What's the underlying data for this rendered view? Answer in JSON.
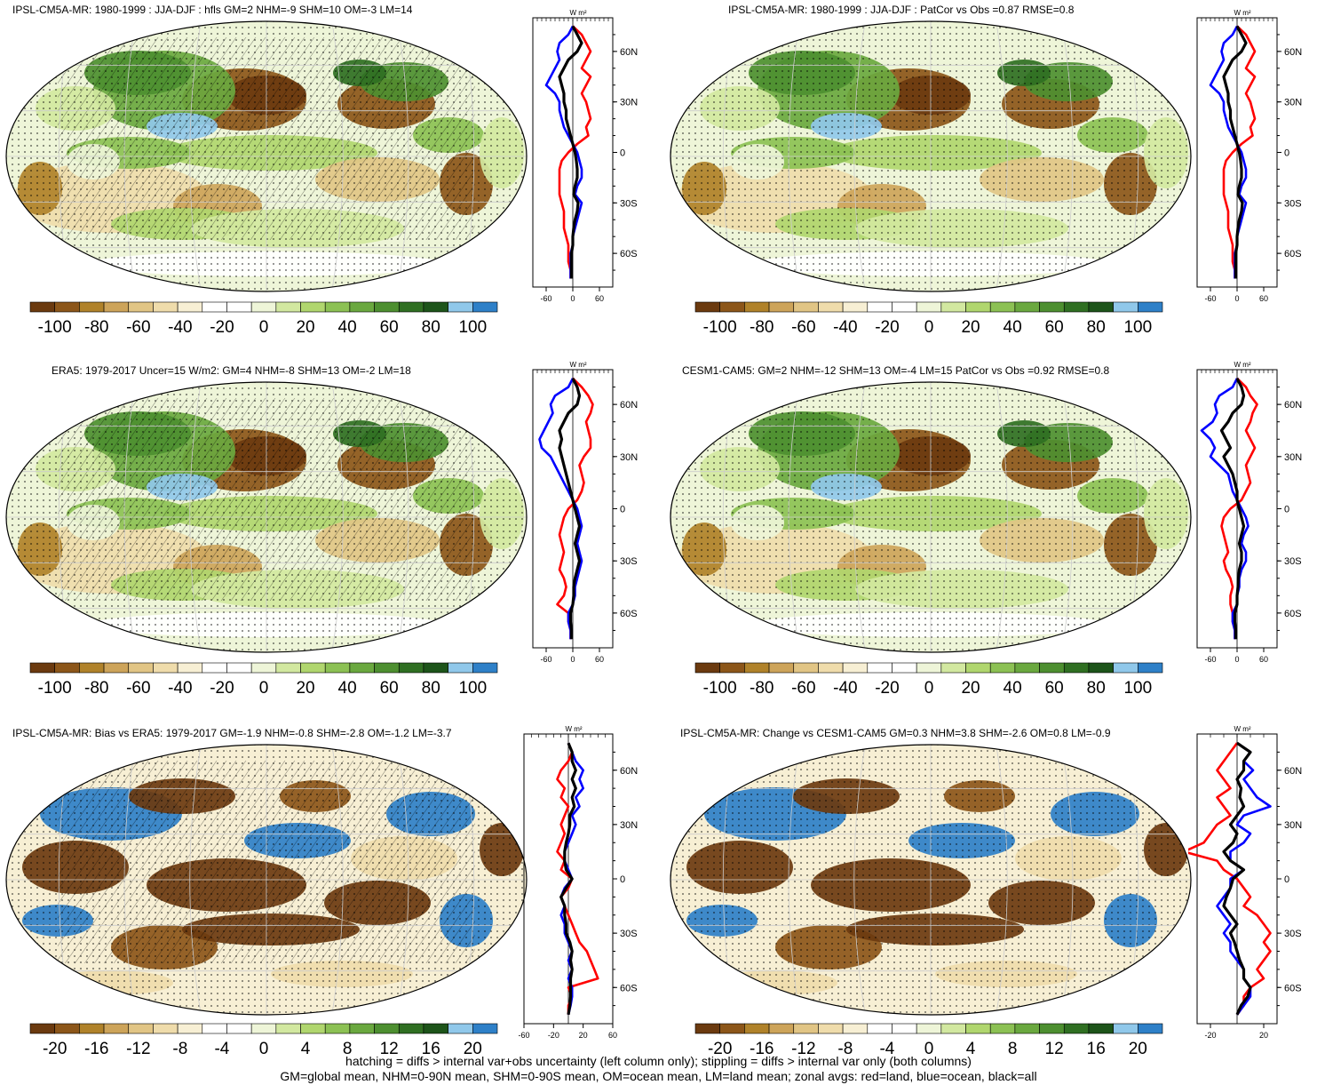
{
  "panels": [
    {
      "title": "IPSL-CM5A-MR: 1980-1999 : JJA-DJF : hfls GM=2 NHM=-9 SHM=10 OM=-3 LM=14",
      "pattern": "A",
      "hatched": true,
      "zonal_xticks": [
        "-60",
        "0",
        "60"
      ],
      "zonal_xrange": [
        -90,
        90
      ]
    },
    {
      "title": "IPSL-CM5A-MR: 1980-1999 : JJA-DJF : PatCor vs Obs =0.87 RMSE=0.8",
      "pattern": "A",
      "hatched": false,
      "zonal_xticks": [
        "-60",
        "0",
        "60"
      ],
      "zonal_xrange": [
        -90,
        90
      ]
    },
    {
      "title": "ERA5: 1979-2017 Uncer=15 W/m2: GM=4 NHM=-8 SHM=13 OM=-2 LM=18",
      "pattern": "A",
      "hatched": true,
      "zonal_xticks": [
        "-60",
        "0",
        "60"
      ],
      "zonal_xrange": [
        -90,
        90
      ]
    },
    {
      "title": "CESM1-CAM5: GM=2 NHM=-12 SHM=13 OM=-4 LM=15 PatCor vs Obs =0.92 RMSE=0.8",
      "pattern": "A",
      "hatched": false,
      "zonal_xticks": [
        "-60",
        "0",
        "60"
      ],
      "zonal_xrange": [
        -90,
        90
      ]
    },
    {
      "title": "IPSL-CM5A-MR: Bias vs ERA5: 1979-2017 GM=-1.9 NHM=-0.8 SHM=-2.8 OM=-1.2 LM=-3.7",
      "pattern": "B",
      "hatched": true,
      "zonal_xticks": [
        "-60",
        "-20",
        "20",
        "60"
      ],
      "zonal_xrange": [
        -60,
        60
      ]
    },
    {
      "title": "IPSL-CM5A-MR: Change vs CESM1-CAM5 GM=0.3 NHM=3.8 SHM=-2.6 OM=0.8 LM=-0.9",
      "pattern": "B",
      "hatched": false,
      "zonal_xticks": [
        "-20",
        "20"
      ],
      "zonal_xrange": [
        -30,
        30
      ]
    }
  ],
  "zonal_units": "W m²",
  "lat_labels": [
    "60N",
    "30N",
    "0",
    "30S",
    "60S"
  ],
  "colorbar_big": {
    "labels": [
      "-100",
      "-80",
      "-60",
      "-40",
      "-20",
      "0",
      "20",
      "40",
      "60",
      "80",
      "100"
    ]
  },
  "colorbar_small": {
    "labels": [
      "-20",
      "-16",
      "-12",
      "-8",
      "-4",
      "0",
      "4",
      "8",
      "12",
      "16",
      "20"
    ]
  },
  "colors": [
    "#6b3a0f",
    "#8c5619",
    "#b0822a",
    "#cda45a",
    "#e1c585",
    "#efdcab",
    "#f7efd4",
    "#ffffff",
    "#ffffff",
    "#eef5d8",
    "#d2e8a0",
    "#b0d66e",
    "#8cc154",
    "#6aa83f",
    "#4d8f30",
    "#2f6f22",
    "#1d541a",
    "#90c8ea",
    "#2e80c8"
  ],
  "line_colors": {
    "land": "#ff0000",
    "ocean": "#0000ff",
    "all": "#000000"
  },
  "footer": [
    "hatching = diffs > internal var+obs uncertainty (left column only); stippling = diffs > internal var only (both columns)",
    "GM=global mean, NHM=0-90N mean, SHM=0-90S mean, OM=ocean mean, LM=land mean; zonal avgs: red=land, blue=ocean, black=all"
  ],
  "chart_data": [
    {
      "type": "heatmap",
      "title": "IPSL-CM5A-MR: 1980-1999 : JJA-DJF : hfls GM=2 NHM=-9 SHM=10 OM=-3 LM=14",
      "colorbar_range": [
        -100,
        100
      ],
      "zonal_range": [
        -90,
        90
      ],
      "zonal_lat": [
        75,
        70,
        65,
        60,
        55,
        50,
        45,
        40,
        35,
        30,
        25,
        20,
        15,
        10,
        5,
        0,
        -5,
        -10,
        -15,
        -20,
        -25,
        -30,
        -35,
        -40,
        -45,
        -50,
        -55,
        -60,
        -65,
        -70,
        -75
      ],
      "zonal_land": [
        0,
        20,
        30,
        40,
        30,
        20,
        40,
        30,
        20,
        30,
        35,
        40,
        30,
        35,
        10,
        -10,
        -25,
        -30,
        -30,
        -30,
        -30,
        -25,
        -20,
        -20,
        -20,
        -15,
        -10,
        -10,
        -10,
        -5,
        -5
      ],
      "zonal_ocean": [
        0,
        -10,
        -30,
        -35,
        -30,
        -40,
        -50,
        -60,
        -40,
        -30,
        -30,
        -25,
        -20,
        -10,
        0,
        10,
        15,
        20,
        20,
        10,
        5,
        20,
        15,
        10,
        5,
        0,
        0,
        -5,
        -5,
        -5,
        -5
      ],
      "zonal_all": [
        0,
        10,
        20,
        10,
        -10,
        -20,
        -30,
        -25,
        -20,
        -20,
        -15,
        -15,
        -10,
        -5,
        0,
        5,
        8,
        10,
        10,
        5,
        2,
        12,
        10,
        5,
        2,
        0,
        0,
        -3,
        -3,
        -3,
        -3
      ]
    },
    {
      "type": "heatmap",
      "title": "IPSL-CM5A-MR: 1980-1999 : JJA-DJF : PatCor vs Obs =0.87 RMSE=0.8",
      "colorbar_range": [
        -100,
        100
      ],
      "zonal_range": [
        -90,
        90
      ],
      "zonal_lat": [
        75,
        70,
        65,
        60,
        55,
        50,
        45,
        40,
        35,
        30,
        25,
        20,
        15,
        10,
        5,
        0,
        -5,
        -10,
        -15,
        -20,
        -25,
        -30,
        -35,
        -40,
        -45,
        -50,
        -55,
        -60,
        -65,
        -70,
        -75
      ],
      "zonal_land": [
        0,
        20,
        30,
        40,
        30,
        20,
        40,
        30,
        20,
        30,
        35,
        40,
        30,
        35,
        10,
        -10,
        -25,
        -30,
        -30,
        -30,
        -30,
        -25,
        -20,
        -20,
        -20,
        -15,
        -10,
        -10,
        -10,
        -5,
        -5
      ],
      "zonal_ocean": [
        0,
        -10,
        -30,
        -35,
        -30,
        -40,
        -50,
        -60,
        -40,
        -30,
        -30,
        -25,
        -20,
        -10,
        0,
        10,
        15,
        20,
        20,
        10,
        5,
        20,
        15,
        10,
        5,
        0,
        0,
        -5,
        -5,
        -5,
        -5
      ],
      "zonal_all": [
        0,
        10,
        20,
        10,
        -10,
        -20,
        -30,
        -25,
        -20,
        -20,
        -15,
        -15,
        -10,
        -5,
        0,
        5,
        8,
        10,
        10,
        5,
        2,
        12,
        10,
        5,
        2,
        0,
        0,
        -3,
        -3,
        -3,
        -3
      ]
    },
    {
      "type": "heatmap",
      "title": "ERA5: 1979-2017 Uncer=15 W/m2: GM=4 NHM=-8 SHM=13 OM=-2 LM=18",
      "colorbar_range": [
        -100,
        100
      ],
      "zonal_range": [
        -90,
        90
      ],
      "zonal_lat": [
        75,
        70,
        65,
        60,
        55,
        50,
        45,
        40,
        35,
        30,
        25,
        20,
        15,
        10,
        5,
        0,
        -5,
        -10,
        -15,
        -20,
        -25,
        -30,
        -35,
        -40,
        -45,
        -50,
        -55,
        -60,
        -65,
        -70,
        -75
      ],
      "zonal_land": [
        0,
        20,
        35,
        45,
        40,
        30,
        35,
        40,
        40,
        25,
        15,
        20,
        25,
        20,
        10,
        -10,
        -20,
        -25,
        -30,
        -25,
        -20,
        -25,
        -30,
        -20,
        -15,
        -20,
        -35,
        -10,
        -10,
        -5,
        -5
      ],
      "zonal_ocean": [
        0,
        -10,
        -40,
        -50,
        -45,
        -55,
        -65,
        -75,
        -70,
        -50,
        -40,
        -30,
        -20,
        -10,
        0,
        10,
        15,
        20,
        15,
        10,
        15,
        20,
        15,
        10,
        5,
        5,
        0,
        -10,
        -10,
        -5,
        -5
      ],
      "zonal_all": [
        0,
        10,
        15,
        10,
        -10,
        -20,
        -30,
        -25,
        -30,
        -25,
        -20,
        -15,
        -10,
        -5,
        0,
        5,
        10,
        15,
        10,
        5,
        10,
        15,
        10,
        5,
        2,
        2,
        0,
        -5,
        -5,
        -3,
        -3
      ]
    },
    {
      "type": "heatmap",
      "title": "CESM1-CAM5: GM=2 NHM=-12 SHM=13 OM=-4 LM=15 PatCor vs Obs =0.92 RMSE=0.8",
      "colorbar_range": [
        -100,
        100
      ],
      "zonal_range": [
        -90,
        90
      ],
      "zonal_lat": [
        75,
        70,
        65,
        60,
        55,
        50,
        45,
        40,
        35,
        30,
        25,
        20,
        15,
        10,
        5,
        0,
        -5,
        -10,
        -15,
        -20,
        -25,
        -30,
        -35,
        -40,
        -45,
        -50,
        -55,
        -60,
        -65,
        -70,
        -75
      ],
      "zonal_land": [
        0,
        20,
        30,
        45,
        35,
        30,
        20,
        30,
        40,
        30,
        20,
        25,
        30,
        20,
        10,
        -15,
        -30,
        -35,
        -30,
        -25,
        -20,
        -30,
        -25,
        -15,
        -10,
        -15,
        -15,
        -10,
        -10,
        -5,
        -5
      ],
      "zonal_ocean": [
        0,
        -10,
        -40,
        -50,
        -45,
        -55,
        -80,
        -60,
        -50,
        -60,
        -40,
        -20,
        -15,
        -10,
        0,
        10,
        20,
        25,
        15,
        10,
        20,
        20,
        10,
        5,
        5,
        0,
        0,
        -10,
        -10,
        -5,
        -5
      ],
      "zonal_all": [
        0,
        10,
        15,
        10,
        -10,
        -20,
        -35,
        -25,
        -15,
        -30,
        -20,
        -10,
        -5,
        0,
        0,
        5,
        10,
        15,
        10,
        5,
        10,
        10,
        5,
        3,
        2,
        0,
        0,
        -5,
        -5,
        -3,
        -3
      ]
    },
    {
      "type": "heatmap",
      "title": "IPSL-CM5A-MR: Bias vs ERA5: 1979-2017 GM=-1.9 NHM=-0.8 SHM=-2.8 OM=-1.2 LM=-3.7",
      "colorbar_range": [
        -20,
        20
      ],
      "zonal_range": [
        -60,
        60
      ],
      "zonal_lat": [
        75,
        70,
        65,
        60,
        55,
        50,
        45,
        40,
        35,
        30,
        25,
        20,
        15,
        10,
        5,
        0,
        -5,
        -10,
        -15,
        -20,
        -25,
        -30,
        -35,
        -40,
        -45,
        -50,
        -55,
        -60,
        -65,
        -70,
        -75
      ],
      "zonal_land": [
        0,
        5,
        0,
        -10,
        -15,
        -5,
        -10,
        0,
        -5,
        -10,
        -5,
        -10,
        -15,
        -5,
        -10,
        5,
        0,
        -10,
        -5,
        0,
        5,
        10,
        15,
        25,
        30,
        35,
        40,
        0,
        5,
        0,
        0
      ],
      "zonal_ocean": [
        0,
        5,
        10,
        20,
        15,
        20,
        10,
        15,
        5,
        10,
        5,
        0,
        -5,
        -5,
        0,
        5,
        -5,
        -10,
        -5,
        -10,
        -5,
        -5,
        0,
        5,
        0,
        5,
        0,
        5,
        5,
        3,
        0
      ],
      "zonal_all": [
        0,
        5,
        5,
        10,
        5,
        10,
        5,
        8,
        2,
        2,
        0,
        -3,
        -5,
        -5,
        -3,
        5,
        -3,
        -10,
        -5,
        -5,
        -3,
        -3,
        2,
        5,
        3,
        5,
        3,
        3,
        3,
        2,
        0
      ]
    },
    {
      "type": "heatmap",
      "title": "IPSL-CM5A-MR: Change vs CESM1-CAM5 GM=0.3 NHM=3.8 SHM=-2.6 OM=0.8 LM=-0.9",
      "colorbar_range": [
        -20,
        20
      ],
      "zonal_range": [
        -30,
        30
      ],
      "zonal_lat": [
        75,
        70,
        65,
        60,
        55,
        50,
        45,
        40,
        35,
        30,
        25,
        20,
        15,
        10,
        5,
        0,
        -5,
        -10,
        -15,
        -20,
        -25,
        -30,
        -35,
        -40,
        -45,
        -50,
        -55,
        -60,
        -65,
        -70,
        -75
      ],
      "zonal_land": [
        0,
        -5,
        -10,
        -15,
        -10,
        -5,
        -15,
        -10,
        -5,
        -15,
        -20,
        -25,
        -40,
        -15,
        -10,
        0,
        5,
        10,
        5,
        15,
        20,
        25,
        20,
        25,
        20,
        15,
        20,
        10,
        5,
        5,
        0
      ],
      "zonal_ocean": [
        0,
        10,
        5,
        12,
        5,
        10,
        15,
        25,
        5,
        0,
        10,
        5,
        -5,
        -5,
        5,
        -5,
        -5,
        -10,
        -15,
        -10,
        -5,
        -10,
        -5,
        -5,
        0,
        5,
        5,
        10,
        10,
        5,
        0
      ],
      "zonal_all": [
        0,
        10,
        5,
        5,
        0,
        3,
        2,
        5,
        0,
        -5,
        0,
        -3,
        -10,
        -5,
        5,
        -3,
        -5,
        -8,
        -10,
        -5,
        0,
        -5,
        -2,
        0,
        2,
        5,
        5,
        10,
        8,
        3,
        0
      ]
    }
  ]
}
